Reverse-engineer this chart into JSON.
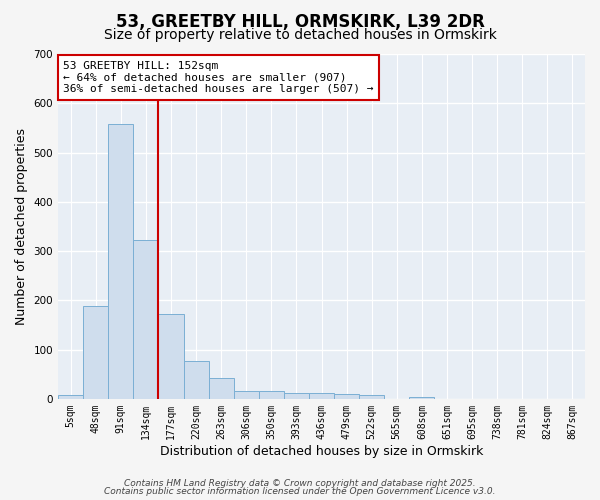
{
  "title": "53, GREETBY HILL, ORMSKIRK, L39 2DR",
  "subtitle": "Size of property relative to detached houses in Ormskirk",
  "xlabel": "Distribution of detached houses by size in Ormskirk",
  "ylabel": "Number of detached properties",
  "categories": [
    "5sqm",
    "48sqm",
    "91sqm",
    "134sqm",
    "177sqm",
    "220sqm",
    "263sqm",
    "306sqm",
    "350sqm",
    "393sqm",
    "436sqm",
    "479sqm",
    "522sqm",
    "565sqm",
    "608sqm",
    "651sqm",
    "695sqm",
    "738sqm",
    "781sqm",
    "824sqm",
    "867sqm"
  ],
  "values": [
    8,
    188,
    557,
    322,
    172,
    76,
    43,
    16,
    16,
    12,
    12,
    10,
    8,
    0,
    4,
    0,
    0,
    0,
    0,
    0,
    0
  ],
  "bar_color": "#cfdded",
  "bar_edge_color": "#7bafd4",
  "vline_x": 3.5,
  "vline_color": "#cc0000",
  "annotation_line1": "53 GREETBY HILL: 152sqm",
  "annotation_line2": "← 64% of detached houses are smaller (907)",
  "annotation_line3": "36% of semi-detached houses are larger (507) →",
  "annotation_box_color": "white",
  "annotation_box_edge_color": "#cc0000",
  "ylim": [
    0,
    700
  ],
  "yticks": [
    0,
    100,
    200,
    300,
    400,
    500,
    600,
    700
  ],
  "plot_bg_color": "#e8eef5",
  "fig_bg_color": "#f5f5f5",
  "grid_color": "white",
  "footer1": "Contains HM Land Registry data © Crown copyright and database right 2025.",
  "footer2": "Contains public sector information licensed under the Open Government Licence v3.0.",
  "title_fontsize": 12,
  "subtitle_fontsize": 10,
  "ylabel_fontsize": 9,
  "xlabel_fontsize": 9,
  "tick_fontsize": 7,
  "annotation_fontsize": 8,
  "footer_fontsize": 6.5
}
